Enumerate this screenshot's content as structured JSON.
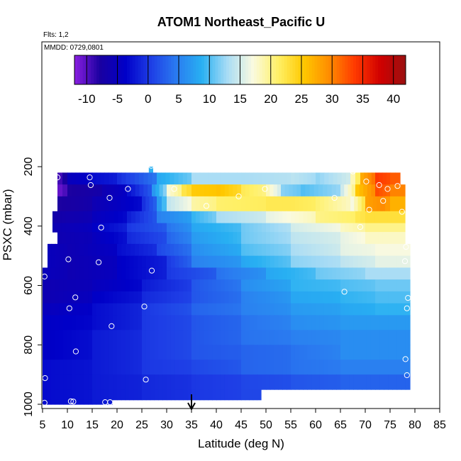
{
  "chart_data": {
    "type": "heatmap",
    "title": "ATOM1 Northeast_Pacific U",
    "subtitle_flights": "Flts: 1,2",
    "subtitle_dates": "MMDD: 0729,0801",
    "xlabel": "Latitude (deg N)",
    "ylabel": "PSXC (mbar)",
    "xlim": [
      5,
      85
    ],
    "ylim": [
      1000,
      100
    ],
    "y_reversed": true,
    "x_ticks": [
      5,
      10,
      15,
      20,
      25,
      30,
      35,
      40,
      45,
      50,
      55,
      60,
      65,
      70,
      75,
      80,
      85
    ],
    "y_ticks": [
      200,
      400,
      600,
      800,
      1000
    ],
    "colorbar": {
      "range": [
        -12,
        42
      ],
      "ticks": [
        -10,
        -5,
        0,
        5,
        10,
        15,
        20,
        25,
        30,
        35,
        40
      ],
      "colors": [
        "#8a1fe0",
        "#1a00a0",
        "#0000c8",
        "#1e3ee6",
        "#2a7bf0",
        "#28b0f2",
        "#a8dcf5",
        "#fafae0",
        "#fff066",
        "#ffc800",
        "#ff8c00",
        "#ff3a00",
        "#d00000",
        "#9a1010"
      ]
    },
    "marker": {
      "label": "arrow",
      "x": 35
    },
    "rows": [
      {
        "p": [
          200,
          220
        ],
        "segs": [
          [
            26.4,
            27.2,
            9
          ]
        ]
      },
      {
        "p": [
          220,
          260
        ],
        "segs": [
          [
            8,
            10,
            -10
          ],
          [
            10,
            15,
            -5
          ],
          [
            15,
            20,
            -3
          ],
          [
            20,
            28,
            -1
          ],
          [
            28,
            35,
            8
          ],
          [
            35,
            45,
            13
          ],
          [
            45,
            55,
            13
          ],
          [
            55,
            60,
            14
          ],
          [
            60,
            67,
            12
          ],
          [
            67,
            69,
            17
          ],
          [
            69,
            72,
            27
          ],
          [
            72,
            75,
            34
          ],
          [
            75,
            77,
            32
          ]
        ]
      },
      {
        "p": [
          260,
          300
        ],
        "segs": [
          [
            8,
            10,
            -11
          ],
          [
            10,
            17,
            -8
          ],
          [
            17,
            22,
            -6
          ],
          [
            22,
            27,
            -3
          ],
          [
            27,
            30,
            6
          ],
          [
            30,
            33,
            17
          ],
          [
            33,
            35,
            22
          ],
          [
            35,
            40,
            25
          ],
          [
            40,
            45,
            26
          ],
          [
            45,
            50,
            22
          ],
          [
            50,
            53,
            19
          ],
          [
            53,
            57,
            12
          ],
          [
            57,
            65,
            10
          ],
          [
            65,
            68,
            14
          ],
          [
            68,
            72,
            25
          ],
          [
            72,
            75,
            33
          ],
          [
            75,
            78,
            30
          ]
        ]
      },
      {
        "p": [
          300,
          350
        ],
        "segs": [
          [
            8,
            15,
            -8
          ],
          [
            15,
            25,
            -6
          ],
          [
            25,
            28,
            -1
          ],
          [
            28,
            30,
            6
          ],
          [
            30,
            35,
            14
          ],
          [
            35,
            40,
            19
          ],
          [
            40,
            50,
            21
          ],
          [
            50,
            55,
            22
          ],
          [
            55,
            60,
            22
          ],
          [
            60,
            67,
            21
          ],
          [
            67,
            70,
            16
          ],
          [
            70,
            73,
            28
          ],
          [
            73,
            75,
            30
          ],
          [
            75,
            78,
            27
          ]
        ]
      },
      {
        "p": [
          350,
          390
        ],
        "segs": [
          [
            7,
            15,
            -7
          ],
          [
            15,
            22,
            -5
          ],
          [
            22,
            28,
            -2
          ],
          [
            28,
            35,
            5
          ],
          [
            35,
            40,
            9
          ],
          [
            40,
            50,
            13
          ],
          [
            50,
            60,
            16
          ],
          [
            60,
            68,
            20
          ],
          [
            68,
            70,
            22
          ],
          [
            70,
            78,
            23
          ]
        ]
      },
      {
        "p": [
          390,
          420
        ],
        "segs": [
          [
            7,
            15,
            -6
          ],
          [
            15,
            22,
            -4
          ],
          [
            22,
            30,
            0
          ],
          [
            30,
            35,
            4
          ],
          [
            35,
            45,
            8
          ],
          [
            45,
            55,
            11
          ],
          [
            55,
            65,
            15
          ],
          [
            65,
            70,
            18
          ],
          [
            70,
            78,
            20
          ]
        ]
      },
      {
        "p": [
          420,
          460
        ],
        "segs": [
          [
            8,
            15,
            -6
          ],
          [
            15,
            22,
            -5
          ],
          [
            22,
            30,
            -1
          ],
          [
            30,
            35,
            3
          ],
          [
            35,
            45,
            7
          ],
          [
            45,
            55,
            11
          ],
          [
            55,
            65,
            14
          ],
          [
            65,
            70,
            16
          ],
          [
            70,
            78,
            18
          ]
        ]
      },
      {
        "p": [
          460,
          500
        ],
        "segs": [
          [
            6,
            10,
            -5
          ],
          [
            10,
            20,
            -6
          ],
          [
            20,
            28,
            -3
          ],
          [
            28,
            35,
            1
          ],
          [
            35,
            45,
            6
          ],
          [
            45,
            55,
            10
          ],
          [
            55,
            65,
            13
          ],
          [
            65,
            72,
            16
          ],
          [
            72,
            79,
            17
          ]
        ]
      },
      {
        "p": [
          500,
          540
        ],
        "segs": [
          [
            6,
            10,
            -5
          ],
          [
            10,
            20,
            -6
          ],
          [
            20,
            30,
            -4
          ],
          [
            30,
            35,
            0
          ],
          [
            35,
            45,
            5
          ],
          [
            45,
            55,
            8
          ],
          [
            55,
            65,
            12
          ],
          [
            65,
            72,
            14
          ],
          [
            72,
            79,
            16
          ]
        ]
      },
      {
        "p": [
          540,
          580
        ],
        "segs": [
          [
            5,
            10,
            -5
          ],
          [
            10,
            20,
            -6
          ],
          [
            20,
            30,
            -4
          ],
          [
            30,
            40,
            0
          ],
          [
            40,
            50,
            4
          ],
          [
            50,
            60,
            8
          ],
          [
            60,
            70,
            11
          ],
          [
            70,
            79,
            13
          ]
        ]
      },
      {
        "p": [
          580,
          620
        ],
        "segs": [
          [
            5,
            15,
            -6
          ],
          [
            15,
            25,
            -5
          ],
          [
            25,
            35,
            -2
          ],
          [
            35,
            45,
            2
          ],
          [
            45,
            55,
            6
          ],
          [
            55,
            65,
            9
          ],
          [
            65,
            72,
            10
          ],
          [
            72,
            79,
            11
          ]
        ]
      },
      {
        "p": [
          620,
          660
        ],
        "segs": [
          [
            5,
            15,
            -6
          ],
          [
            15,
            25,
            -4
          ],
          [
            25,
            35,
            -1
          ],
          [
            35,
            45,
            2
          ],
          [
            45,
            55,
            5
          ],
          [
            55,
            65,
            8
          ],
          [
            65,
            72,
            9
          ],
          [
            72,
            79,
            10
          ]
        ]
      },
      {
        "p": [
          660,
          700
        ],
        "segs": [
          [
            5,
            15,
            -5
          ],
          [
            15,
            25,
            -3
          ],
          [
            25,
            35,
            0
          ],
          [
            35,
            45,
            3
          ],
          [
            45,
            55,
            5
          ],
          [
            55,
            65,
            7
          ],
          [
            65,
            72,
            8
          ],
          [
            72,
            79,
            9
          ]
        ]
      },
      {
        "p": [
          700,
          750
        ],
        "segs": [
          [
            5,
            15,
            -4
          ],
          [
            15,
            25,
            -3
          ],
          [
            25,
            35,
            0
          ],
          [
            35,
            45,
            2
          ],
          [
            45,
            55,
            4
          ],
          [
            55,
            65,
            6
          ],
          [
            65,
            79,
            7
          ]
        ]
      },
      {
        "p": [
          750,
          800
        ],
        "segs": [
          [
            5,
            15,
            -4
          ],
          [
            15,
            25,
            -2
          ],
          [
            25,
            35,
            0
          ],
          [
            35,
            45,
            2
          ],
          [
            45,
            55,
            4
          ],
          [
            55,
            65,
            5
          ],
          [
            65,
            79,
            6
          ]
        ]
      },
      {
        "p": [
          800,
          850
        ],
        "segs": [
          [
            5,
            15,
            -4
          ],
          [
            15,
            25,
            -2
          ],
          [
            25,
            35,
            0
          ],
          [
            35,
            45,
            2
          ],
          [
            45,
            55,
            3
          ],
          [
            55,
            65,
            4
          ],
          [
            65,
            79,
            6
          ]
        ]
      },
      {
        "p": [
          850,
          900
        ],
        "segs": [
          [
            5,
            15,
            -3
          ],
          [
            15,
            25,
            -2
          ],
          [
            25,
            35,
            0
          ],
          [
            35,
            45,
            1
          ],
          [
            45,
            55,
            3
          ],
          [
            55,
            65,
            4
          ],
          [
            65,
            79,
            5
          ]
        ]
      },
      {
        "p": [
          900,
          950
        ],
        "segs": [
          [
            5,
            15,
            -3
          ],
          [
            15,
            25,
            -2
          ],
          [
            25,
            35,
            -1
          ],
          [
            35,
            45,
            0
          ],
          [
            45,
            55,
            1
          ],
          [
            55,
            65,
            2
          ],
          [
            65,
            79,
            3
          ]
        ]
      },
      {
        "p": [
          950,
          985
        ],
        "segs": [
          [
            5,
            15,
            -3
          ],
          [
            15,
            25,
            -2
          ],
          [
            25,
            35,
            -1
          ],
          [
            35,
            45,
            0
          ],
          [
            45,
            49,
            1
          ]
        ]
      },
      {
        "p": [
          985,
          1000
        ],
        "segs": [
          [
            5,
            15,
            -3
          ],
          [
            15,
            19,
            -2
          ]
        ]
      }
    ],
    "points": [
      [
        26.9,
        197
      ],
      [
        8,
        236
      ],
      [
        14.5,
        236
      ],
      [
        14.7,
        262
      ],
      [
        22.2,
        275
      ],
      [
        18.5,
        305
      ],
      [
        31.5,
        275
      ],
      [
        44.5,
        300
      ],
      [
        49.8,
        275
      ],
      [
        63.8,
        305
      ],
      [
        70.2,
        250
      ],
      [
        72.8,
        262
      ],
      [
        74.5,
        275
      ],
      [
        76.5,
        265
      ],
      [
        73.6,
        315
      ],
      [
        70.8,
        345
      ],
      [
        77.4,
        352
      ],
      [
        67.5,
        216
      ],
      [
        38,
        332
      ],
      [
        16.8,
        405
      ],
      [
        69,
        403
      ],
      [
        78.2,
        470
      ],
      [
        10.2,
        512
      ],
      [
        16.3,
        522
      ],
      [
        27,
        550
      ],
      [
        78,
        518
      ],
      [
        5.4,
        570
      ],
      [
        11.6,
        640
      ],
      [
        10.4,
        677
      ],
      [
        25.5,
        671
      ],
      [
        18.9,
        737
      ],
      [
        65.8,
        621
      ],
      [
        78.6,
        642
      ],
      [
        78.4,
        677
      ],
      [
        11.7,
        822
      ],
      [
        78.1,
        848
      ],
      [
        5.5,
        912
      ],
      [
        25.8,
        917
      ],
      [
        78.4,
        902
      ],
      [
        10.7,
        990
      ],
      [
        11.2,
        991
      ],
      [
        17.6,
        993
      ],
      [
        18.6,
        993
      ],
      [
        5.4,
        995
      ]
    ]
  }
}
